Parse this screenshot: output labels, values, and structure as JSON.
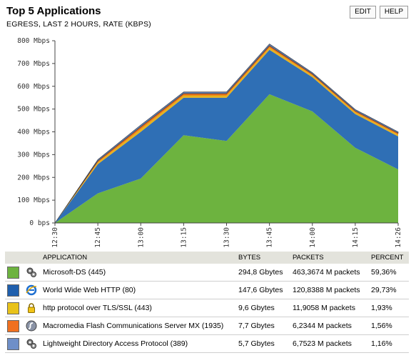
{
  "header": {
    "title": "Top 5 Applications",
    "subtitle": "EGRESS, LAST 2 HOURS, RATE (KBPS)",
    "edit_label": "EDIT",
    "help_label": "HELP"
  },
  "chart_data": {
    "type": "area",
    "stacked": true,
    "x": [
      "12:30",
      "12:45",
      "13:00",
      "13:15",
      "13:30",
      "13:45",
      "14:00",
      "14:15",
      "14:26"
    ],
    "y_ticks": [
      "0 bps",
      "100 Mbps",
      "200 Mbps",
      "300 Mbps",
      "400 Mbps",
      "500 Mbps",
      "600 Mbps",
      "700 Mbps",
      "800 Mbps"
    ],
    "ylim": [
      0,
      800
    ],
    "grid": false,
    "series": [
      {
        "name": "Microsoft-DS (445)",
        "color": "#6db33f",
        "values": [
          0,
          130,
          195,
          385,
          360,
          565,
          490,
          330,
          235
        ]
      },
      {
        "name": "World Wide Web HTTP (80)",
        "color": "#2f6fb5",
        "values": [
          0,
          128,
          205,
          165,
          190,
          195,
          150,
          148,
          145
        ]
      },
      {
        "name": "http protocol over TLS/SSL (443)",
        "color": "#e8b21a",
        "values": [
          0,
          8,
          12,
          10,
          10,
          10,
          8,
          8,
          8
        ]
      },
      {
        "name": "Macromedia Flash Communications Server MX (1935)",
        "color": "#e8701a",
        "values": [
          0,
          6,
          10,
          8,
          8,
          8,
          6,
          6,
          6
        ]
      },
      {
        "name": "Lightweight Directory Access Protocol (389)",
        "color": "#6080b8",
        "values": [
          0,
          6,
          8,
          7,
          7,
          8,
          6,
          6,
          6
        ]
      }
    ]
  },
  "table": {
    "headers": {
      "application": "APPLICATION",
      "bytes": "BYTES",
      "packets": "PACKETS",
      "percent": "PERCENT"
    },
    "rows": [
      {
        "color": "#6db33f",
        "icon": "gears-icon",
        "app": "Microsoft-DS (445)",
        "bytes": "294,8 Gbytes",
        "packets": "463,3674 M packets",
        "percent": "59,36%"
      },
      {
        "color": "#1f5fad",
        "icon": "internet-explorer-icon",
        "app": "World Wide Web HTTP (80)",
        "bytes": "147,6 Gbytes",
        "packets": "120,8388 M packets",
        "percent": "29,73%"
      },
      {
        "color": "#e8c21a",
        "icon": "lock-icon",
        "app": "http protocol over TLS/SSL (443)",
        "bytes": "9,6 Gbytes",
        "packets": "11,9058 M packets",
        "percent": "1,93%"
      },
      {
        "color": "#f07020",
        "icon": "flash-icon",
        "app": "Macromedia Flash Communications Server MX (1935)",
        "bytes": "7,7 Gbytes",
        "packets": "6,2344 M packets",
        "percent": "1,56%"
      },
      {
        "color": "#6f8fc8",
        "icon": "gears-icon",
        "app": "Lightweight Directory Access Protocol (389)",
        "bytes": "5,7 Gbytes",
        "packets": "6,7523 M packets",
        "percent": "1,16%"
      }
    ]
  }
}
